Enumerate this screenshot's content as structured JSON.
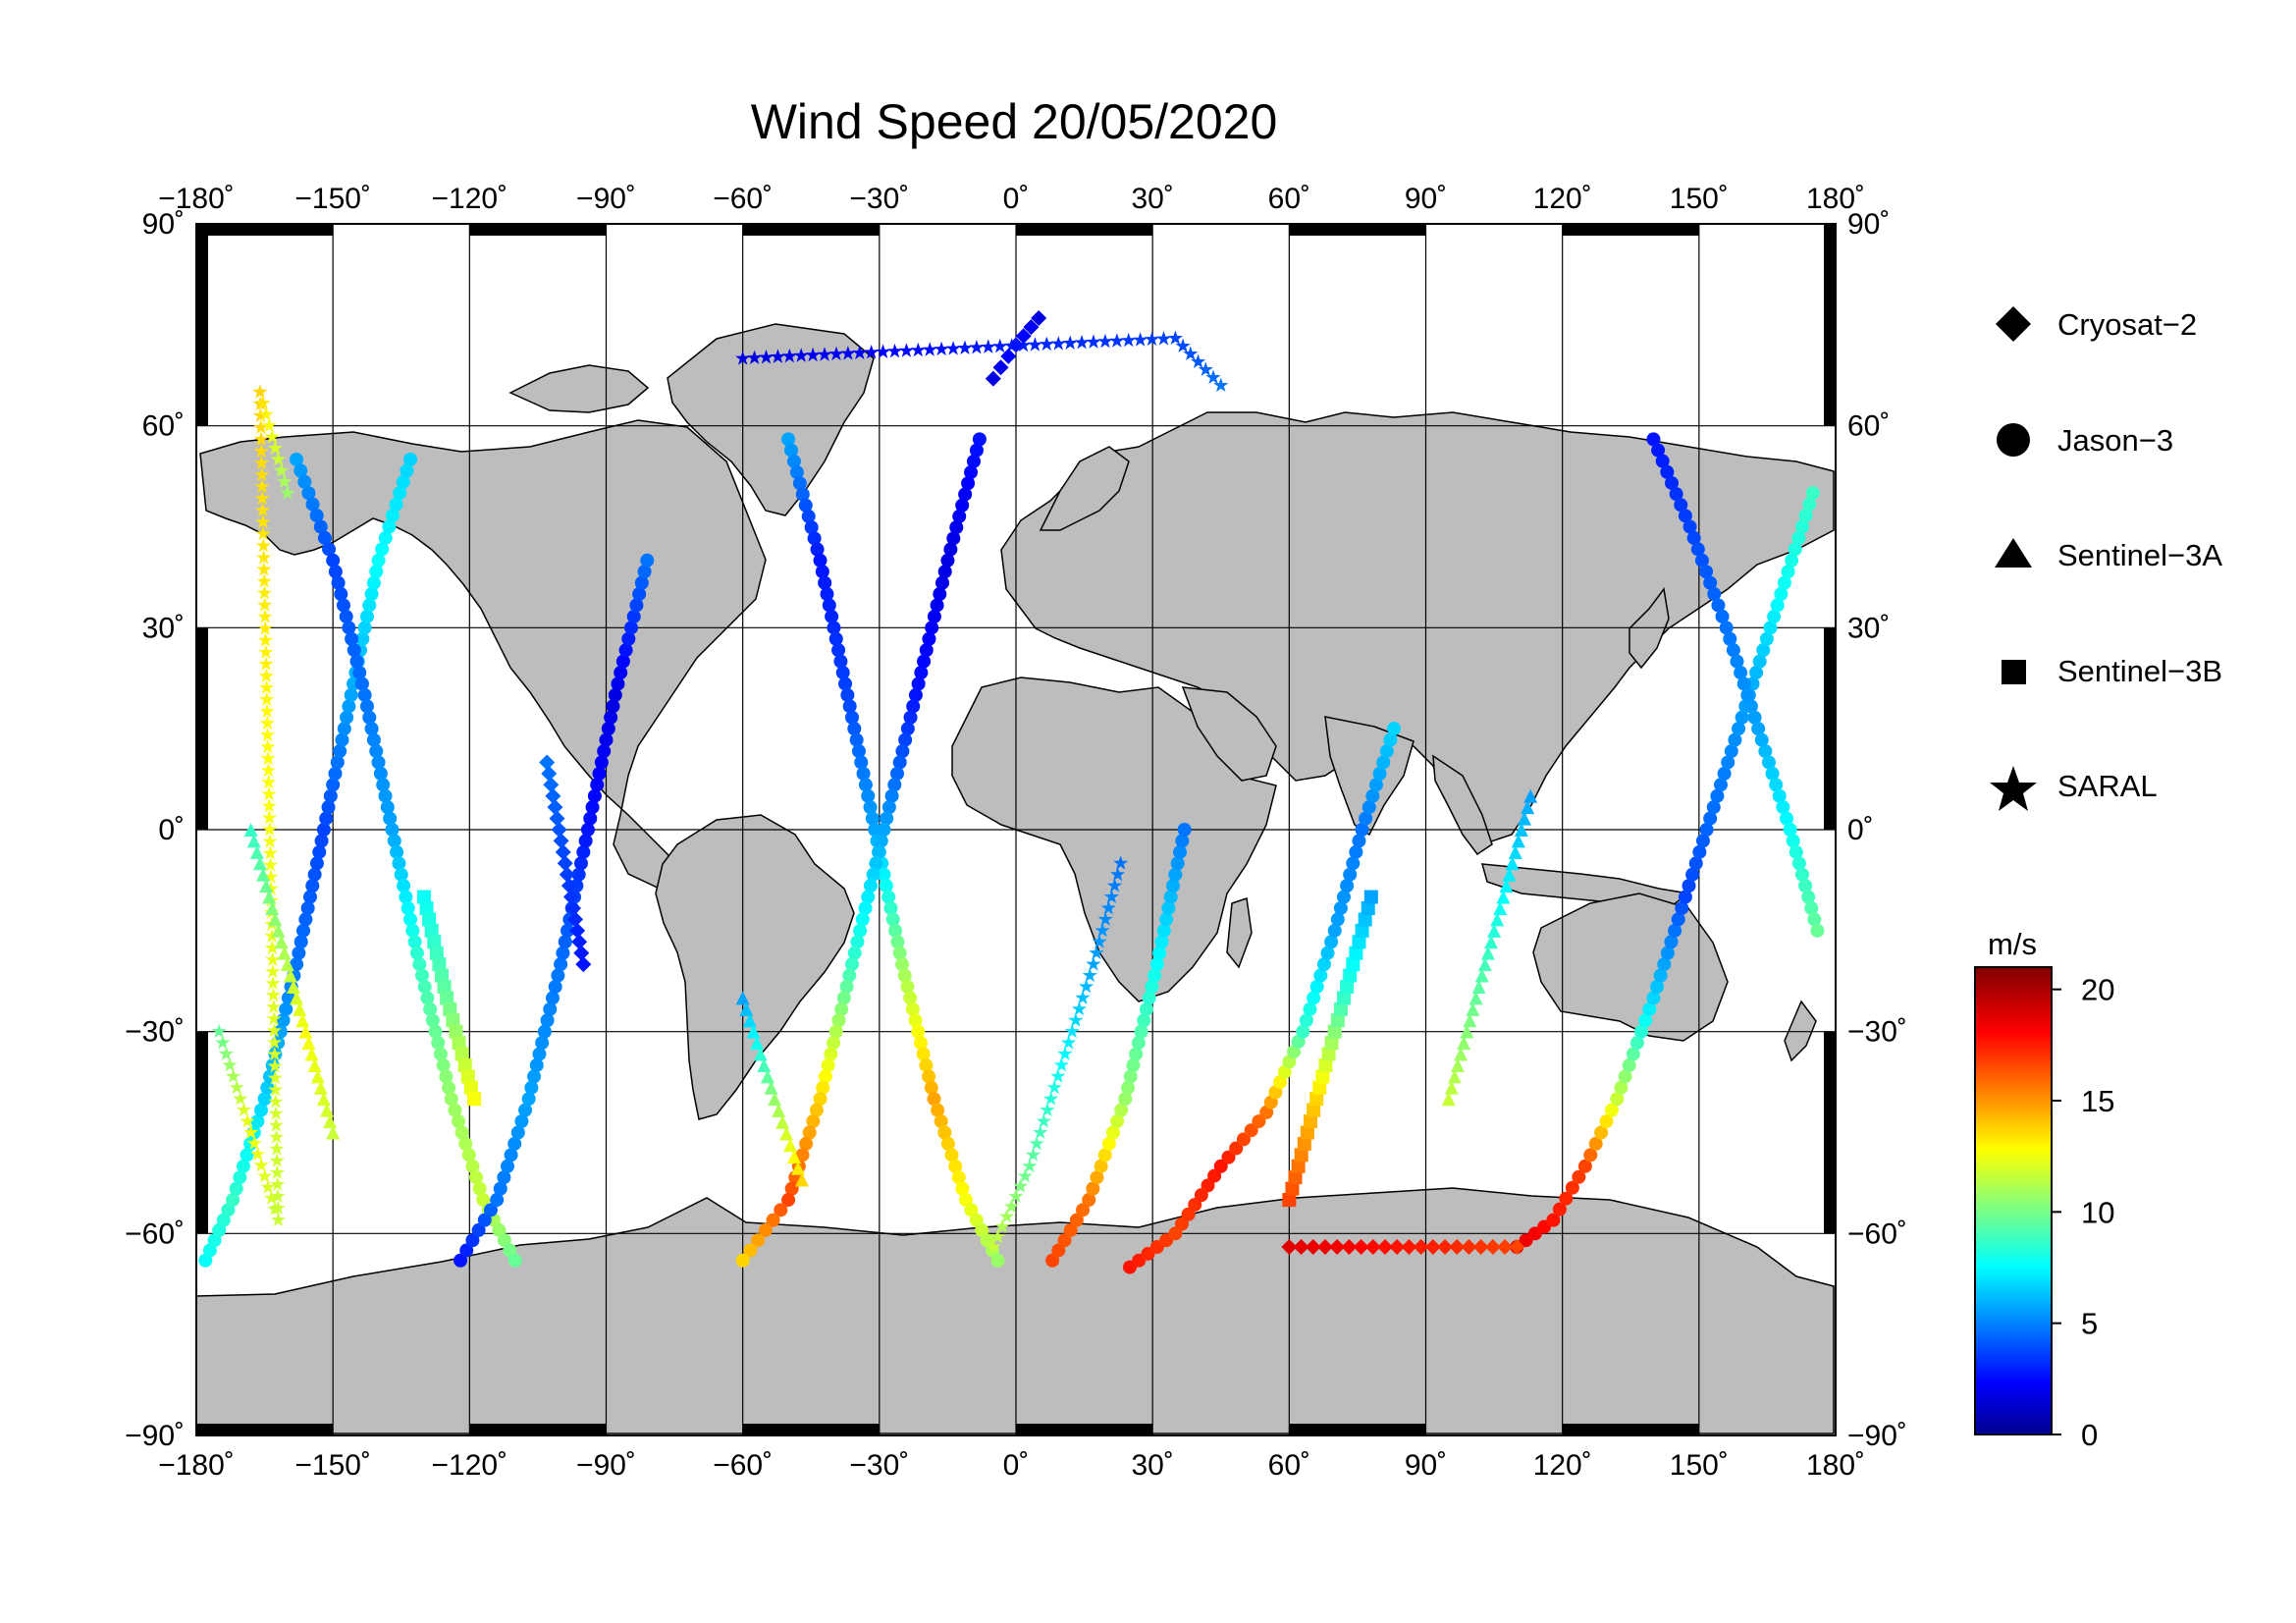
{
  "title": "Wind Speed 20/05/2020",
  "map": {
    "projection": "equirectangular",
    "lon_range": [
      -180,
      180
    ],
    "lat_range": [
      -90,
      90
    ],
    "lon_ticks": [
      -180,
      -150,
      -120,
      -90,
      -60,
      -30,
      0,
      30,
      60,
      90,
      120,
      150,
      180
    ],
    "lat_ticks": [
      90,
      60,
      30,
      0,
      -30,
      -60,
      -90
    ],
    "lon_tick_labels": [
      "−180˚",
      "−150˚",
      "−120˚",
      "−90˚",
      "−60˚",
      "−30˚",
      "0˚",
      "30˚",
      "60˚",
      "90˚",
      "120˚",
      "150˚",
      "180˚"
    ],
    "lat_tick_labels": [
      "90˚",
      "60˚",
      "30˚",
      "0˚",
      "−30˚",
      "−60˚",
      "−90˚"
    ],
    "land_color": "#bdbdbd",
    "ocean_color": "#ffffff",
    "grid": true
  },
  "legend": {
    "placement": "right",
    "items": [
      {
        "label": "Cryosat−2",
        "marker": "diamond"
      },
      {
        "label": "Jason−3",
        "marker": "circle"
      },
      {
        "label": "Sentinel−3A",
        "marker": "triangle"
      },
      {
        "label": "Sentinel−3B",
        "marker": "square"
      },
      {
        "label": "SARAL",
        "marker": "star"
      }
    ]
  },
  "colorbar": {
    "unit": "m/s",
    "min": 0,
    "max": 21,
    "ticks": [
      0,
      5,
      10,
      15,
      20
    ],
    "tick_labels": [
      "0",
      "5",
      "10",
      "15",
      "20"
    ],
    "colormap": "jet"
  },
  "chart_data": {
    "type": "scatter",
    "title": "Wind Speed 20/05/2020",
    "xlabel": "",
    "ylabel": "",
    "xlim": [
      -180,
      180
    ],
    "ylim": [
      -90,
      90
    ],
    "color_variable": "wind speed (m/s)",
    "tracks": [
      {
        "satellite": "Jason−3",
        "marker": "circle",
        "points": [
          [
            -178,
            -64,
            8
          ],
          [
            -172,
            -55,
            9
          ],
          [
            -165,
            -40,
            7
          ],
          [
            -158,
            -20,
            5
          ],
          [
            -152,
            0,
            4
          ],
          [
            -146,
            20,
            6
          ],
          [
            -140,
            40,
            8
          ],
          [
            -133,
            55,
            7
          ]
        ]
      },
      {
        "satellite": "Jason−3",
        "marker": "circle",
        "points": [
          [
            -158,
            55,
            6
          ],
          [
            -150,
            40,
            4
          ],
          [
            -143,
            20,
            5
          ],
          [
            -137,
            0,
            6
          ],
          [
            -131,
            -20,
            9
          ],
          [
            -124,
            -40,
            11
          ],
          [
            -117,
            -55,
            12
          ],
          [
            -110,
            -64,
            10
          ]
        ]
      },
      {
        "satellite": "Jason−3",
        "marker": "circle",
        "points": [
          [
            -122,
            -64,
            3
          ],
          [
            -114,
            -55,
            5
          ],
          [
            -107,
            -40,
            6
          ],
          [
            -100,
            -20,
            5
          ],
          [
            -94,
            0,
            3
          ],
          [
            -88,
            20,
            2
          ],
          [
            -81,
            40,
            5
          ]
        ]
      },
      {
        "satellite": "Jason−3",
        "marker": "circle",
        "points": [
          [
            -50,
            58,
            6
          ],
          [
            -43,
            40,
            3
          ],
          [
            -37,
            20,
            4
          ],
          [
            -31,
            0,
            6
          ],
          [
            -25,
            -20,
            11
          ],
          [
            -18,
            -40,
            15
          ],
          [
            -11,
            -55,
            13
          ],
          [
            -4,
            -64,
            11
          ]
        ]
      },
      {
        "satellite": "Jason−3",
        "marker": "circle",
        "points": [
          [
            -8,
            58,
            3
          ],
          [
            -15,
            40,
            2
          ],
          [
            -22,
            20,
            3
          ],
          [
            -29,
            0,
            6
          ],
          [
            -36,
            -20,
            9
          ],
          [
            -43,
            -40,
            14
          ],
          [
            -50,
            -55,
            17
          ],
          [
            -60,
            -64,
            14
          ]
        ]
      },
      {
        "satellite": "Jason−3",
        "marker": "circle",
        "points": [
          [
            8,
            -64,
            17
          ],
          [
            16,
            -55,
            16
          ],
          [
            24,
            -40,
            11
          ],
          [
            31,
            -20,
            8
          ],
          [
            37,
            0,
            5
          ]
        ]
      },
      {
        "satellite": "Jason−3",
        "marker": "circle",
        "points": [
          [
            25,
            -65,
            18
          ],
          [
            35,
            -60,
            17
          ],
          [
            45,
            -50,
            18
          ],
          [
            55,
            -42,
            16
          ],
          [
            63,
            -30,
            9
          ],
          [
            70,
            -15,
            6
          ],
          [
            76,
            0,
            5
          ],
          [
            83,
            15,
            7
          ]
        ]
      },
      {
        "satellite": "Jason−3",
        "marker": "circle",
        "points": [
          [
            110,
            -62,
            19
          ],
          [
            118,
            -58,
            18
          ],
          [
            125,
            -50,
            17
          ],
          [
            132,
            -40,
            12
          ],
          [
            140,
            -25,
            7
          ],
          [
            147,
            -10,
            4
          ],
          [
            154,
            5,
            5
          ],
          [
            161,
            20,
            6
          ],
          [
            168,
            35,
            8
          ],
          [
            175,
            50,
            9
          ]
        ]
      },
      {
        "satellite": "Jason−3",
        "marker": "circle",
        "points": [
          [
            140,
            58,
            3
          ],
          [
            148,
            45,
            4
          ],
          [
            156,
            30,
            5
          ],
          [
            163,
            15,
            6
          ],
          [
            170,
            0,
            8
          ],
          [
            176,
            -15,
            10
          ]
        ]
      },
      {
        "satellite": "SARAL",
        "marker": "star",
        "points": [
          [
            -175,
            -30,
            10
          ],
          [
            -168,
            -45,
            13
          ],
          [
            -162,
            -58,
            12
          ],
          [
            -166,
            65,
            14
          ],
          [
            -160,
            50,
            11
          ]
        ]
      },
      {
        "satellite": "SARAL",
        "marker": "star",
        "points": [
          [
            -5,
            -62,
            12
          ],
          [
            3,
            -50,
            10
          ],
          [
            10,
            -35,
            8
          ],
          [
            17,
            -20,
            6
          ],
          [
            23,
            -5,
            5
          ]
        ]
      },
      {
        "satellite": "SARAL",
        "marker": "star",
        "points": [
          [
            -60,
            70,
            2
          ],
          [
            35,
            73,
            4
          ],
          [
            45,
            66,
            5
          ]
        ]
      },
      {
        "satellite": "Sentinel−3A",
        "marker": "triangle",
        "points": [
          [
            -168,
            0,
            9
          ],
          [
            -162,
            -15,
            11
          ],
          [
            -156,
            -30,
            13
          ],
          [
            -150,
            -45,
            12
          ]
        ]
      },
      {
        "satellite": "Sentinel−3A",
        "marker": "triangle",
        "points": [
          [
            -60,
            -25,
            6
          ],
          [
            -53,
            -40,
            11
          ],
          [
            -47,
            -52,
            14
          ]
        ]
      },
      {
        "satellite": "Sentinel−3A",
        "marker": "triangle",
        "points": [
          [
            95,
            -40,
            12
          ],
          [
            101,
            -25,
            10
          ],
          [
            107,
            -10,
            8
          ],
          [
            113,
            5,
            6
          ]
        ]
      },
      {
        "satellite": "Sentinel−3B",
        "marker": "square",
        "points": [
          [
            -130,
            -10,
            8
          ],
          [
            -125,
            -25,
            10
          ],
          [
            -119,
            -40,
            13
          ]
        ]
      },
      {
        "satellite": "Sentinel−3B",
        "marker": "square",
        "points": [
          [
            60,
            -55,
            17
          ],
          [
            66,
            -40,
            14
          ],
          [
            72,
            -25,
            9
          ],
          [
            78,
            -10,
            6
          ]
        ]
      },
      {
        "satellite": "Cryosat−2",
        "marker": "diamond",
        "points": [
          [
            -95,
            -20,
            3
          ],
          [
            -99,
            -5,
            4
          ],
          [
            -103,
            10,
            5
          ]
        ]
      },
      {
        "satellite": "Cryosat−2",
        "marker": "diamond",
        "points": [
          [
            -5,
            67,
            2
          ],
          [
            0,
            72,
            3
          ],
          [
            5,
            76,
            2
          ]
        ]
      },
      {
        "satellite": "Cryosat−2",
        "marker": "diamond",
        "points": [
          [
            60,
            -62,
            19
          ],
          [
            110,
            -62,
            17
          ]
        ]
      }
    ]
  }
}
